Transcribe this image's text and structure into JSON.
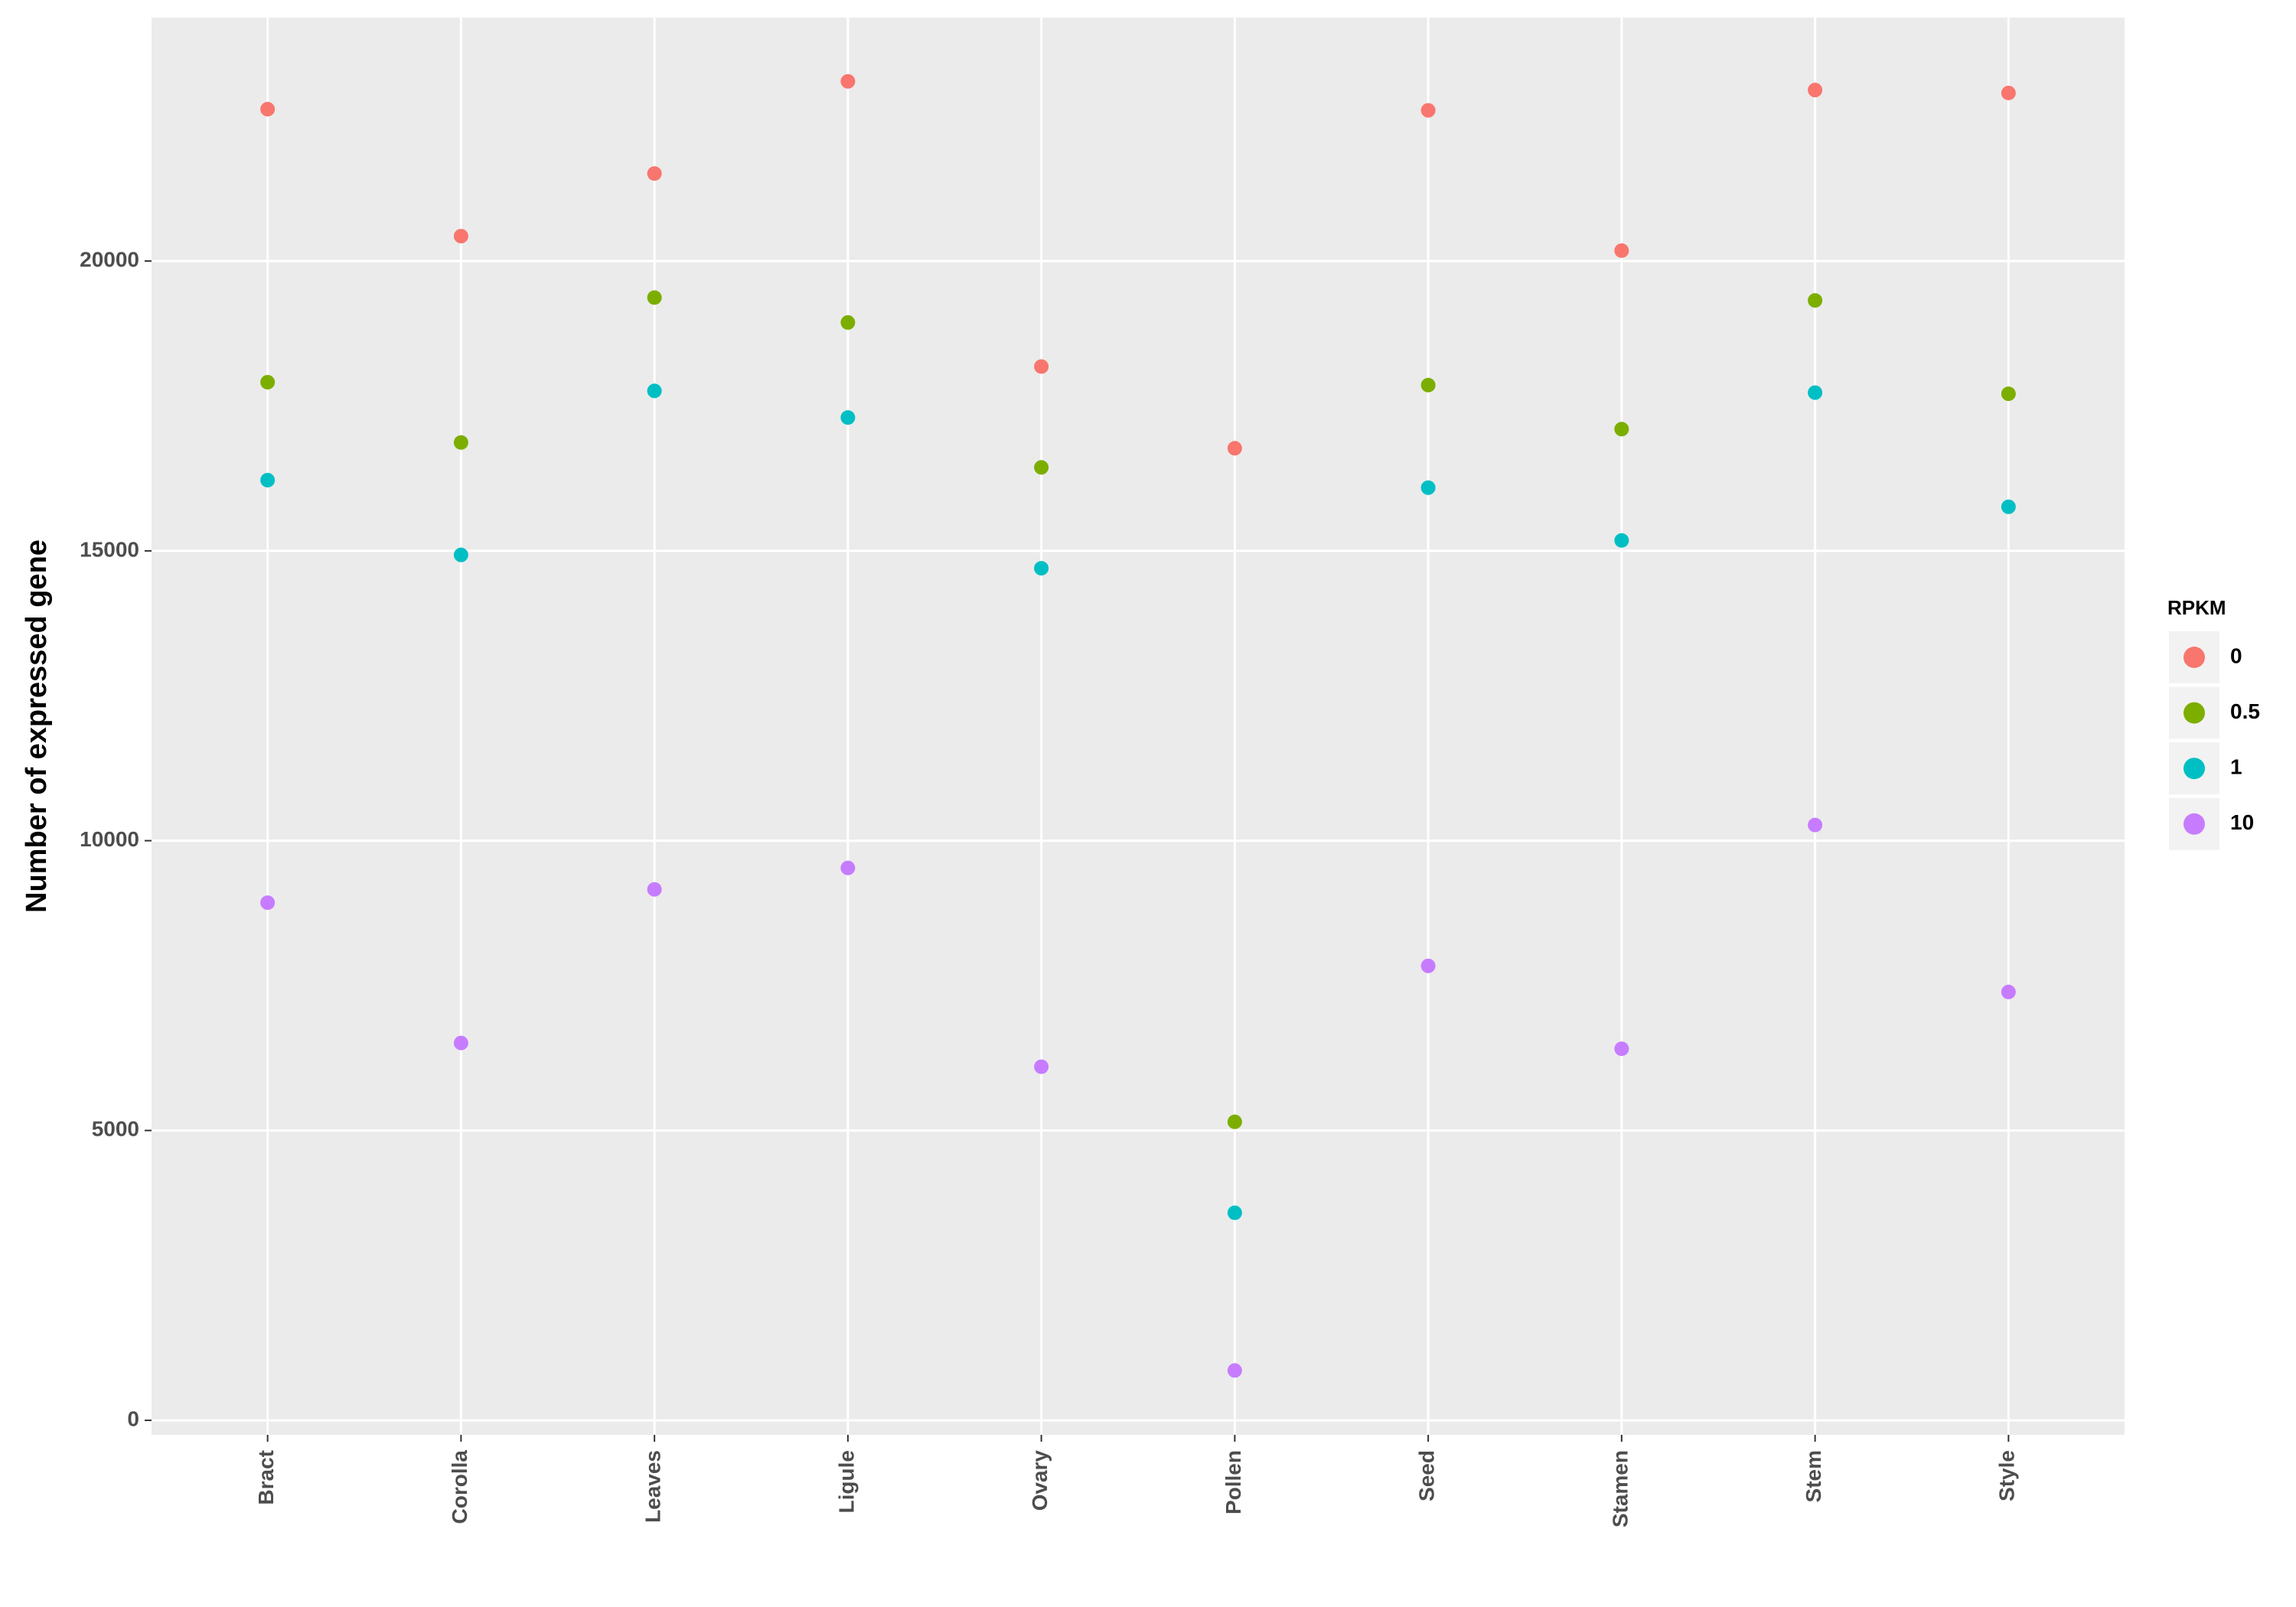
{
  "chart_data": {
    "type": "scatter",
    "y_label": "Number of expressed gene",
    "legend_title": "RPKM",
    "legend_position": "right",
    "grid": true,
    "categories": [
      "Bract",
      "Corolla",
      "Leaves",
      "Ligule",
      "Ovary",
      "Pollen",
      "Seed",
      "Stamen",
      "Stem",
      "Style"
    ],
    "series": [
      {
        "name": "0",
        "color": "#F8766D",
        "values": [
          22620,
          20430,
          21510,
          23100,
          18180,
          16770,
          22600,
          20180,
          22950,
          22900
        ]
      },
      {
        "name": "0.5",
        "color": "#7CAE00",
        "values": [
          17910,
          16870,
          19370,
          18940,
          16440,
          5150,
          17860,
          17100,
          19320,
          17710
        ]
      },
      {
        "name": "1",
        "color": "#00BFC4",
        "values": [
          16220,
          14930,
          17760,
          17300,
          14700,
          3580,
          16090,
          15180,
          17730,
          15760
        ]
      },
      {
        "name": "10",
        "color": "#C77CFF",
        "values": [
          8930,
          6510,
          9160,
          9530,
          6100,
          860,
          7840,
          6410,
          10270,
          7390
        ]
      }
    ],
    "ylim": [
      -250,
      24200
    ],
    "yticks": [
      0,
      5000,
      10000,
      15000,
      20000
    ]
  }
}
